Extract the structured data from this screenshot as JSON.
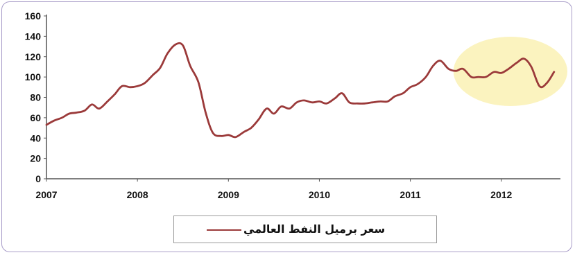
{
  "chart_data": {
    "type": "line",
    "title": "",
    "xlabel": "",
    "ylabel": "",
    "xlim": [
      2007,
      2012.65
    ],
    "ylim": [
      0,
      160
    ],
    "yticks": [
      0,
      20,
      40,
      60,
      80,
      100,
      120,
      140,
      160
    ],
    "xticks": [
      2007,
      2008,
      2009,
      2010,
      2011,
      2012
    ],
    "grid": false,
    "legend_placement": "bottom",
    "highlight": {
      "x_range": [
        2011.55,
        2012.65
      ],
      "color": "#fbf3bf"
    },
    "series": [
      {
        "name": "سعر برميل النفط العالمي",
        "color": "#9b3a3a",
        "x": [
          2007.0,
          2007.08,
          2007.17,
          2007.25,
          2007.33,
          2007.42,
          2007.5,
          2007.58,
          2007.67,
          2007.75,
          2007.83,
          2007.92,
          2008.0,
          2008.08,
          2008.17,
          2008.25,
          2008.33,
          2008.42,
          2008.5,
          2008.58,
          2008.67,
          2008.75,
          2008.83,
          2008.92,
          2009.0,
          2009.08,
          2009.17,
          2009.25,
          2009.33,
          2009.42,
          2009.5,
          2009.58,
          2009.67,
          2009.75,
          2009.83,
          2009.92,
          2010.0,
          2010.08,
          2010.17,
          2010.25,
          2010.33,
          2010.42,
          2010.5,
          2010.58,
          2010.67,
          2010.75,
          2010.83,
          2010.92,
          2011.0,
          2011.08,
          2011.17,
          2011.25,
          2011.33,
          2011.42,
          2011.5,
          2011.58,
          2011.67,
          2011.75,
          2011.83,
          2011.92,
          2012.0,
          2012.08,
          2012.17,
          2012.25,
          2012.33,
          2012.42,
          2012.5,
          2012.58
        ],
        "values": [
          53,
          57,
          60,
          64,
          65,
          67,
          73,
          69,
          76,
          83,
          91,
          90,
          91,
          94,
          102,
          109,
          123,
          132,
          131,
          111,
          95,
          65,
          45,
          42,
          43,
          41,
          46,
          50,
          58,
          69,
          64,
          71,
          69,
          75,
          77,
          75,
          76,
          74,
          79,
          84,
          75,
          74,
          74,
          75,
          76,
          76,
          81,
          84,
          90,
          93,
          100,
          111,
          116,
          108,
          106,
          108,
          100,
          100,
          100,
          105,
          104,
          108,
          114,
          118,
          110,
          91,
          94,
          105
        ]
      }
    ]
  }
}
